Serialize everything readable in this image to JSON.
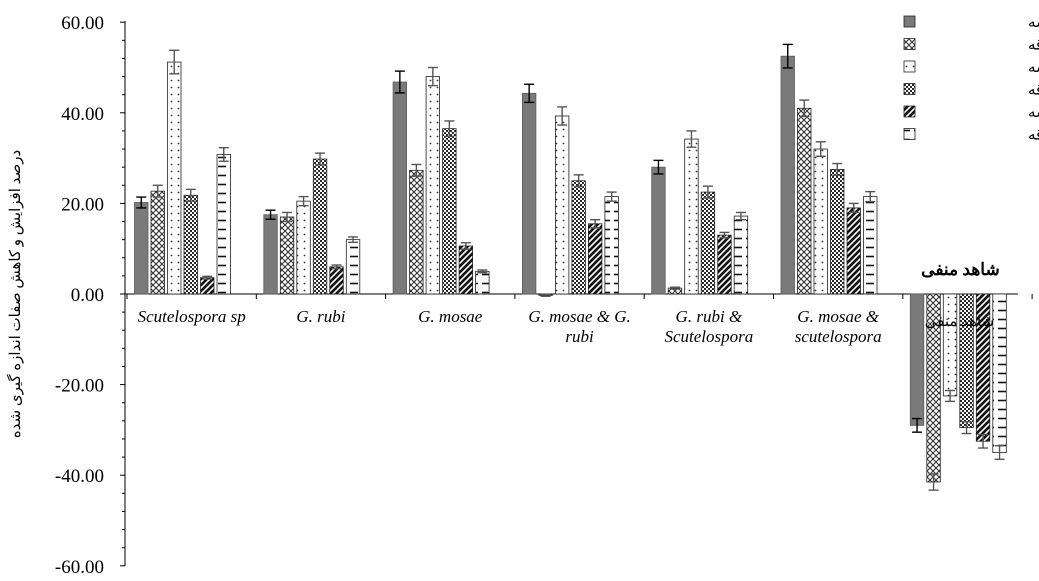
{
  "chart_data": {
    "type": "bar",
    "ylabel": "درصد افزایش و کاهش صفات اندازه گیری شده",
    "ylim": [
      -60,
      60
    ],
    "yticks": [
      60,
      40,
      20,
      0,
      -20,
      -40,
      -60
    ],
    "ytick_labels": [
      "60.00",
      "40.00",
      "20.00",
      "0.00",
      "-20.00",
      "-40.00",
      "-60.00"
    ],
    "grid": false,
    "legend_position": "top-right",
    "categories": [
      [
        "Scutelospora sp"
      ],
      [
        "G. rubi"
      ],
      [
        "G. mosae"
      ],
      [
        "G. mosae & G.",
        "rubi"
      ],
      [
        "G. rubi &",
        "Scutelospora"
      ],
      [
        "G. mosae &",
        "scutelospora"
      ],
      [
        "شاهد منفی"
      ]
    ],
    "series": [
      {
        "name": "وزن خشک ریشه",
        "pattern": "solid",
        "values": [
          20.2,
          17.5,
          46.8,
          44.3,
          28.0,
          52.5,
          -29.0
        ],
        "errors": [
          1.2,
          1.0,
          2.4,
          2.0,
          1.5,
          2.6,
          1.5
        ]
      },
      {
        "name": "وزن خشک ساقه",
        "pattern": "cross",
        "values": [
          22.7,
          17.0,
          27.3,
          -0.3,
          1.3,
          41.0,
          -41.5
        ],
        "errors": [
          1.3,
          1.0,
          1.3,
          0.2,
          0.2,
          1.8,
          1.8
        ]
      },
      {
        "name": "وزن تر ریشه",
        "pattern": "dots",
        "values": [
          51.2,
          20.5,
          48.0,
          39.3,
          34.2,
          32.0,
          -22.5
        ],
        "errors": [
          2.6,
          1.0,
          2.0,
          2.0,
          1.8,
          1.6,
          1.2
        ]
      },
      {
        "name": "وزن تر ساقه",
        "pattern": "grid",
        "values": [
          21.8,
          29.8,
          36.5,
          25.0,
          22.5,
          27.5,
          -29.5
        ],
        "errors": [
          1.3,
          1.3,
          1.7,
          1.3,
          1.3,
          1.3,
          1.3
        ]
      },
      {
        "name": "طول ریشه",
        "pattern": "diag",
        "values": [
          3.6,
          6.0,
          10.6,
          15.5,
          13.0,
          19.0,
          -32.5
        ],
        "errors": [
          0.3,
          0.4,
          0.7,
          0.9,
          0.6,
          1.0,
          1.5
        ]
      },
      {
        "name": "طول ساقه",
        "pattern": "dash",
        "values": [
          30.8,
          12.0,
          5.0,
          21.5,
          17.2,
          21.5,
          -35.0
        ],
        "errors": [
          1.5,
          0.6,
          0.3,
          1.0,
          0.8,
          1.1,
          1.5
        ]
      }
    ],
    "overlap_text": "شاهد منفی"
  }
}
